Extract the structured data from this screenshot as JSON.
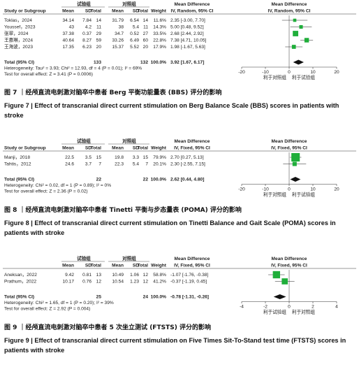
{
  "figures": [
    {
      "group_headers": [
        "试验组",
        "对照组",
        "Mean Difference",
        "Mean Difference"
      ],
      "columns": [
        "Study or Subgroup",
        "Mean",
        "SD",
        "Total",
        "Mean",
        "SD",
        "Total",
        "Weight",
        "IV, Random, 95% CI",
        "IV, Random, 95% CI"
      ],
      "studies": [
        {
          "name": "Toklas，2024",
          "exp": [
            "34.14",
            "7.84",
            "14"
          ],
          "ctl": [
            "31.79",
            "6.54",
            "14"
          ],
          "weight": 11.6,
          "weight_label": "11.6%",
          "md": 2.35,
          "ci": [
            -3.0,
            7.7
          ],
          "effect": "2.35 [-3.00, 7.70]"
        },
        {
          "name": "Youssef，2023",
          "exp": [
            "43",
            "4.2",
            "11"
          ],
          "ctl": [
            "38",
            "5.4",
            "11"
          ],
          "weight": 14.3,
          "weight_label": "14.3%",
          "md": 5.0,
          "ci": [
            0.48,
            9.52
          ],
          "effect": "5.00 [0.48, 9.52]"
        },
        {
          "name": "张翠，2024",
          "exp": [
            "37.38",
            "0.37",
            "29"
          ],
          "ctl": [
            "34.7",
            "0.52",
            "27"
          ],
          "weight": 33.5,
          "weight_label": "33.5%",
          "md": 2.68,
          "ci": [
            2.44,
            2.92
          ],
          "effect": "2.68 [2.44, 2.92]"
        },
        {
          "name": "王嘉琳，2024",
          "exp": [
            "40.64",
            "8.27",
            "59"
          ],
          "ctl": [
            "33.26",
            "6.49",
            "60"
          ],
          "weight": 22.8,
          "weight_label": "22.8%",
          "md": 7.38,
          "ci": [
            4.71,
            10.05
          ],
          "effect": "7.38 [4.71, 10.05]"
        },
        {
          "name": "王海波，2023",
          "exp": [
            "17.35",
            "6.23",
            "20"
          ],
          "ctl": [
            "15.37",
            "5.52",
            "20"
          ],
          "weight": 17.9,
          "weight_label": "17.9%",
          "md": 1.98,
          "ci": [
            -1.67,
            5.63
          ],
          "effect": "1.98 [-1.67, 5.63]"
        }
      ],
      "total": {
        "name": "Total (95% CI)",
        "exp_total": "133",
        "ctl_total": "132",
        "weight_label": "100.0%",
        "md": 3.92,
        "ci": [
          1.67,
          6.17
        ],
        "effect": "3.92 [1.67, 6.17]"
      },
      "heterogeneity": "Heterogeneity: Tau² = 3.93; Chi² = 12.93, df = 4 (P = 0.01); I² = 69%",
      "overall": "Test for overall effect: Z = 3.41 (P = 0.0006)",
      "xlim": [
        -20,
        20
      ],
      "xticks": [
        -20,
        -10,
        0,
        10,
        20
      ],
      "favors": [
        "利于对照组",
        "利于试验组"
      ],
      "caption_cn": "图 7 ｜经颅直流电刺激对脑卒中患者 Berg 平衡功能量表 (BBS) 评分的影响",
      "caption_en": "Figure 7 | Effect of transcranial direct current stimulation on Berg Balance Scale (BBS) scores in patients with stroke"
    },
    {
      "group_headers": [
        "试验组",
        "对照组",
        "Mean Difference",
        "Mean Difference"
      ],
      "columns": [
        "Study or Subgroup",
        "Mean",
        "SD",
        "Total",
        "Mean",
        "SD",
        "Total",
        "Weight",
        "IV, Fixed, 95% CI",
        "IV, Fixed, 95% CI"
      ],
      "studies": [
        {
          "name": "Manji，2018",
          "exp": [
            "22.5",
            "3.5",
            "15"
          ],
          "ctl": [
            "19.8",
            "3.3",
            "15"
          ],
          "weight": 79.9,
          "weight_label": "79.9%",
          "md": 2.7,
          "ci": [
            0.27,
            5.13
          ],
          "effect": "2.70 [0.27, 5.13]"
        },
        {
          "name": "Tahtis，2012",
          "exp": [
            "24.6",
            "3.7",
            "7"
          ],
          "ctl": [
            "22.3",
            "5.4",
            "7"
          ],
          "weight": 20.1,
          "weight_label": "20.1%",
          "md": 2.3,
          "ci": [
            -2.55,
            7.15
          ],
          "effect": "2.30 [-2.55, 7.15]"
        }
      ],
      "total": {
        "name": "Total (95% CI)",
        "exp_total": "22",
        "ctl_total": "22",
        "weight_label": "100.0%",
        "md": 2.62,
        "ci": [
          0.44,
          4.8
        ],
        "effect": "2.62 [0.44, 4.80]"
      },
      "heterogeneity": "Heterogeneity: Chi² = 0.02, df = 1 (P = 0.89); I² = 0%",
      "overall": "Test for overall effect: Z = 2.36 (P = 0.02)",
      "xlim": [
        -20,
        20
      ],
      "xticks": [
        -20,
        -10,
        0,
        10,
        20
      ],
      "favors": [
        "利于对照组",
        "利于试验组"
      ],
      "caption_cn": "图 8 ｜经颅直流电刺激对脑卒中患者 Tinetti 平衡与步态量表 (POMA) 评分的影响",
      "caption_en": "Figure 8 | Effect of transcranial direct current stimulation on Tinetti Balance and Gait Scale (POMA) scores in patients with stroke"
    },
    {
      "group_headers": [
        "试验组",
        "对照组",
        "Mean Difference",
        "Mean Difference"
      ],
      "columns": [
        null,
        "Mean",
        "SD",
        "Total",
        "Mean",
        "SD",
        "Total",
        "Weight",
        "IV, Fixed, 95% CI",
        "IV, Fixed, 95% CI"
      ],
      "studies": [
        {
          "name": "Aneksan，2022",
          "exp": [
            "9.42",
            "0.81",
            "13"
          ],
          "ctl": [
            "10.49",
            "1.06",
            "12"
          ],
          "weight": 58.8,
          "weight_label": "58.8%",
          "md": -1.07,
          "ci": [
            -1.76,
            -0.38
          ],
          "effect": "-1.07 [-1.76, -0.38]"
        },
        {
          "name": "Prathum，2022",
          "exp": [
            "10.17",
            "0.76",
            "12"
          ],
          "ctl": [
            "10.54",
            "1.23",
            "12"
          ],
          "weight": 41.2,
          "weight_label": "41.2%",
          "md": -0.37,
          "ci": [
            -1.19,
            0.45
          ],
          "effect": "-0.37 [-1.19, 0.45]"
        }
      ],
      "total": {
        "name": "Total (95% CI)",
        "exp_total": "25",
        "ctl_total": "24",
        "weight_label": "100.0%",
        "md": -0.78,
        "ci": [
          -1.31,
          -0.26
        ],
        "effect": "-0.78 [-1.31, -0.26]"
      },
      "heterogeneity": "Heterogeneity: Chi² = 1.65, df = 1 (P = 0.20); I² = 39%",
      "overall": "Test for overall effect: Z = 2.92 (P = 0.004)",
      "xlim": [
        -4,
        4
      ],
      "xticks": [
        -4,
        -2,
        0,
        2,
        4
      ],
      "favors": [
        "利于试验组",
        "利于对照组"
      ],
      "caption_cn": "图 9 ｜经颅直流电刺激对脑卒中患者 5 次坐立测试 (FTSTS) 评分的影响",
      "caption_en": "Figure 9 | Effect of transcranial direct current stimulation on Five Times Sit-To-Stand test time (FTSTS) scores in patients with stroke"
    }
  ]
}
